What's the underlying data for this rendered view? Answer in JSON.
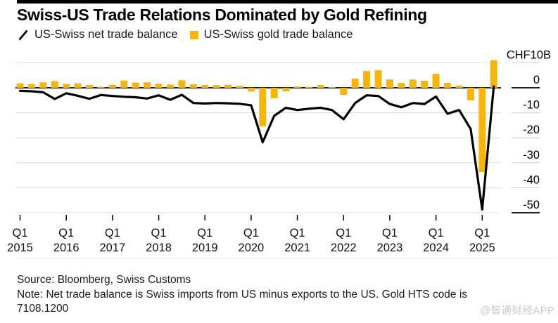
{
  "title": "Swiss-US Trade Relations Dominated by Gold Refining",
  "legend": {
    "items": [
      {
        "label": "US-Swiss net trade balance",
        "type": "line",
        "color": "#000000"
      },
      {
        "label": "US-Swiss gold trade balance",
        "type": "bar",
        "color": "#F6B40E"
      }
    ]
  },
  "colors": {
    "gold": "#F6B40E",
    "line": "#000000",
    "grid": "#DCDCDC",
    "zero_line": "#000000",
    "watermark": "#C9C9C9"
  },
  "chart_data": {
    "type": "bar",
    "subtype": "bar+line combo, quarterly time series",
    "title": "Swiss-US Trade Relations Dominated by Gold Refining",
    "xlabel": "",
    "ylabel": "CHF10B",
    "ylim": [
      -55,
      12
    ],
    "grid": true,
    "legend_position": "top-left",
    "quarters": [
      "Q1 2015",
      "Q2 2015",
      "Q3 2015",
      "Q4 2015",
      "Q1 2016",
      "Q2 2016",
      "Q3 2016",
      "Q4 2016",
      "Q1 2017",
      "Q2 2017",
      "Q3 2017",
      "Q4 2017",
      "Q1 2018",
      "Q2 2018",
      "Q3 2018",
      "Q4 2018",
      "Q1 2019",
      "Q2 2019",
      "Q3 2019",
      "Q4 2019",
      "Q1 2020",
      "Q2 2020",
      "Q3 2020",
      "Q4 2020",
      "Q1 2021",
      "Q2 2021",
      "Q3 2021",
      "Q4 2021",
      "Q1 2022",
      "Q2 2022",
      "Q3 2022",
      "Q4 2022",
      "Q1 2023",
      "Q2 2023",
      "Q3 2023",
      "Q4 2023",
      "Q1 2024",
      "Q2 2024",
      "Q3 2024",
      "Q4 2024",
      "Q1 2025",
      "Q2 2025"
    ],
    "series": [
      {
        "name": "US-Swiss net trade balance",
        "type": "line",
        "color": "#000000",
        "values": [
          -1.2,
          -1.4,
          -1.8,
          -4.5,
          -2.2,
          -3.2,
          -4.4,
          -2.9,
          -3.3,
          -3.6,
          -3.8,
          -4.3,
          -3.0,
          -4.8,
          -2.8,
          -6.1,
          -6.3,
          -6.1,
          -6.2,
          -6.4,
          -7.0,
          -21.8,
          -11.2,
          -8.0,
          -8.9,
          -8.4,
          -8.0,
          -8.9,
          -12.6,
          -6.1,
          -3.0,
          -3.3,
          -6.5,
          -7.8,
          -6.1,
          -6.5,
          -3.5,
          -10.4,
          -8.9,
          -16.5,
          -48.7,
          0.5
        ]
      },
      {
        "name": "US-Swiss gold trade balance",
        "type": "bar",
        "color": "#F6B40E",
        "values": [
          1.8,
          1.5,
          2.2,
          2.7,
          1.5,
          1.8,
          1.1,
          0.4,
          1.2,
          2.9,
          2.1,
          2.2,
          1.6,
          1.3,
          3.0,
          1.4,
          1.1,
          1.1,
          1.2,
          0.8,
          -1.5,
          -15.4,
          -4.2,
          -1.4,
          0.5,
          0.4,
          1.1,
          0.3,
          -2.8,
          3.7,
          6.7,
          7.0,
          3.3,
          1.9,
          3.3,
          2.8,
          5.6,
          1.9,
          0.9,
          -5.0,
          -33.7,
          11.0
        ]
      }
    ],
    "yticks": [
      {
        "value": 10,
        "label": "CHF10B"
      },
      {
        "value": 0,
        "label": "0"
      },
      {
        "value": -10,
        "label": "-10"
      },
      {
        "value": -20,
        "label": "-20"
      },
      {
        "value": -30,
        "label": "-30"
      },
      {
        "value": -40,
        "label": "-40"
      },
      {
        "value": -50,
        "label": "-50"
      }
    ],
    "x_ticks": [
      {
        "index": 0,
        "top": "Q1",
        "bottom": "2015"
      },
      {
        "index": 4,
        "top": "Q1",
        "bottom": "2016"
      },
      {
        "index": 8,
        "top": "Q1",
        "bottom": "2017"
      },
      {
        "index": 12,
        "top": "Q1",
        "bottom": "2018"
      },
      {
        "index": 16,
        "top": "Q1",
        "bottom": "2019"
      },
      {
        "index": 20,
        "top": "Q1",
        "bottom": "2020"
      },
      {
        "index": 24,
        "top": "Q1",
        "bottom": "2021"
      },
      {
        "index": 28,
        "top": "Q1",
        "bottom": "2022"
      },
      {
        "index": 32,
        "top": "Q1",
        "bottom": "2023"
      },
      {
        "index": 36,
        "top": "Q1",
        "bottom": "2024"
      },
      {
        "index": 40,
        "top": "Q1",
        "bottom": "2025"
      }
    ]
  },
  "footer": {
    "source": "Source: Bloomberg, Swiss Customs",
    "note_line1": "Note: Net trade balance is Swiss imports from US minus exports to the US. Gold HTS code is",
    "note_line2": "7108.1200",
    "watermark": "@智通财经APP"
  }
}
